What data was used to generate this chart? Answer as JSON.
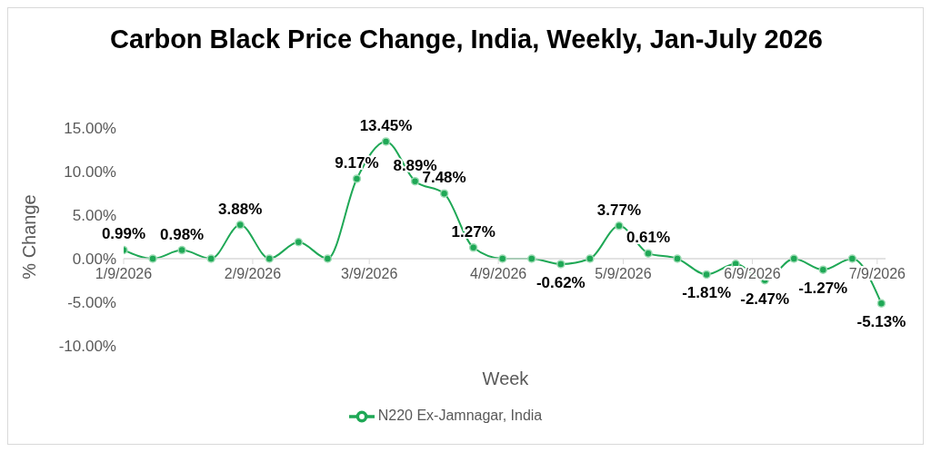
{
  "chart_data": {
    "type": "line",
    "title": "Carbon Black Price Change, India, Weekly, Jan-July 2026",
    "xlabel": "Week",
    "ylabel": "% Change",
    "x": [
      "2026-01-09",
      "2026-01-16",
      "2026-01-23",
      "2026-01-30",
      "2026-02-06",
      "2026-02-13",
      "2026-02-20",
      "2026-02-27",
      "2026-03-06",
      "2026-03-13",
      "2026-03-20",
      "2026-03-27",
      "2026-04-03",
      "2026-04-10",
      "2026-04-17",
      "2026-04-24",
      "2026-05-01",
      "2026-05-08",
      "2026-05-15",
      "2026-05-22",
      "2026-05-29",
      "2026-06-05",
      "2026-06-12",
      "2026-06-19",
      "2026-06-26",
      "2026-07-03",
      "2026-07-10"
    ],
    "series": [
      {
        "name": "N220 Ex-Jamnagar, India",
        "color": "#1fa856",
        "values": [
          0.99,
          0,
          0.98,
          0,
          3.88,
          0,
          1.9,
          0,
          9.17,
          13.45,
          8.89,
          7.48,
          1.27,
          0,
          0,
          -0.62,
          0,
          3.77,
          0.61,
          0,
          -1.81,
          -0.6,
          -2.47,
          0,
          -1.27,
          0,
          -5.13
        ],
        "value_labels": [
          "0.99%",
          null,
          "0.98%",
          null,
          "3.88%",
          null,
          null,
          null,
          "9.17%",
          "13.45%",
          "8.89%",
          "7.48%",
          "1.27%",
          null,
          null,
          "-0.62%",
          null,
          "3.77%",
          "0.61%",
          null,
          "-1.81%",
          null,
          "-2.47%",
          null,
          "-1.27%",
          null,
          "-5.13%"
        ]
      }
    ],
    "xlim": [
      "2026-01-09",
      "2026-07-11"
    ],
    "xticks": [
      {
        "value": "2026-01-09",
        "label": "1/9/2026"
      },
      {
        "value": "2026-02-09",
        "label": "2/9/2026"
      },
      {
        "value": "2026-03-09",
        "label": "3/9/2026"
      },
      {
        "value": "2026-04-09",
        "label": "4/9/2026"
      },
      {
        "value": "2026-05-09",
        "label": "5/9/2026"
      },
      {
        "value": "2026-06-09",
        "label": "6/9/2026"
      },
      {
        "value": "2026-07-09",
        "label": "7/9/2026"
      }
    ],
    "ylim": [
      -10,
      15
    ],
    "yticks": [
      {
        "value": -10,
        "label": "-10.00%"
      },
      {
        "value": -5,
        "label": "-5.00%"
      },
      {
        "value": 0,
        "label": "0.00%"
      },
      {
        "value": 5,
        "label": "5.00%"
      },
      {
        "value": 10,
        "label": "10.00%"
      },
      {
        "value": 15,
        "label": "15.00%"
      }
    ],
    "grid": false,
    "legend": "bottom",
    "marker": "circle",
    "line_style": "solid"
  }
}
